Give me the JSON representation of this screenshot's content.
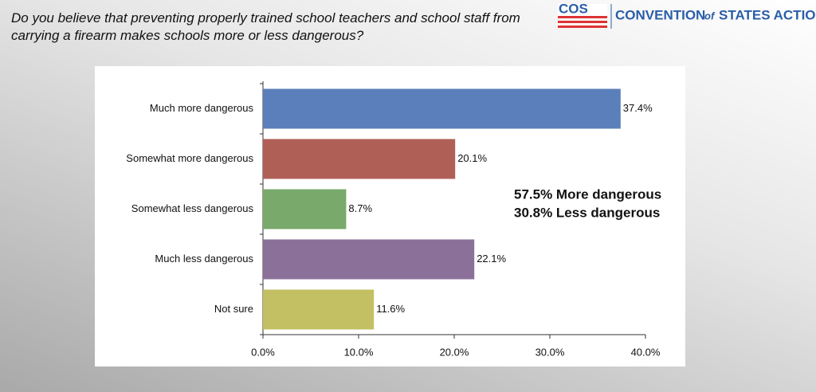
{
  "logo": {
    "mark": "COS",
    "words": [
      "CONVENTION",
      "of",
      "STATES ACTION"
    ]
  },
  "chart_data": {
    "type": "bar",
    "orientation": "horizontal",
    "title": "Do you believe that preventing properly trained school teachers and school staff from carrying a firearm makes schools more or less dangerous?",
    "categories": [
      "Much more dangerous",
      "Somewhat more dangerous",
      "Somewhat less dangerous",
      "Much less dangerous",
      "Not sure"
    ],
    "values": [
      37.4,
      20.1,
      8.7,
      22.1,
      11.6
    ],
    "value_labels": [
      "37.4%",
      "20.1%",
      "8.7%",
      "22.1%",
      "11.6%"
    ],
    "colors": [
      "#5b7fba",
      "#b05f57",
      "#79a96b",
      "#8b719a",
      "#c2c062"
    ],
    "xlim": [
      0,
      40
    ],
    "xticks": [
      {
        "value": 0,
        "label": "0.0%"
      },
      {
        "value": 10,
        "label": "10.0%"
      },
      {
        "value": 20,
        "label": "20.0%"
      },
      {
        "value": 30,
        "label": "30.0%"
      },
      {
        "value": 40,
        "label": "40.0%"
      }
    ],
    "annotations": [
      "57.5% More dangerous",
      "30.8% Less dangerous"
    ]
  }
}
